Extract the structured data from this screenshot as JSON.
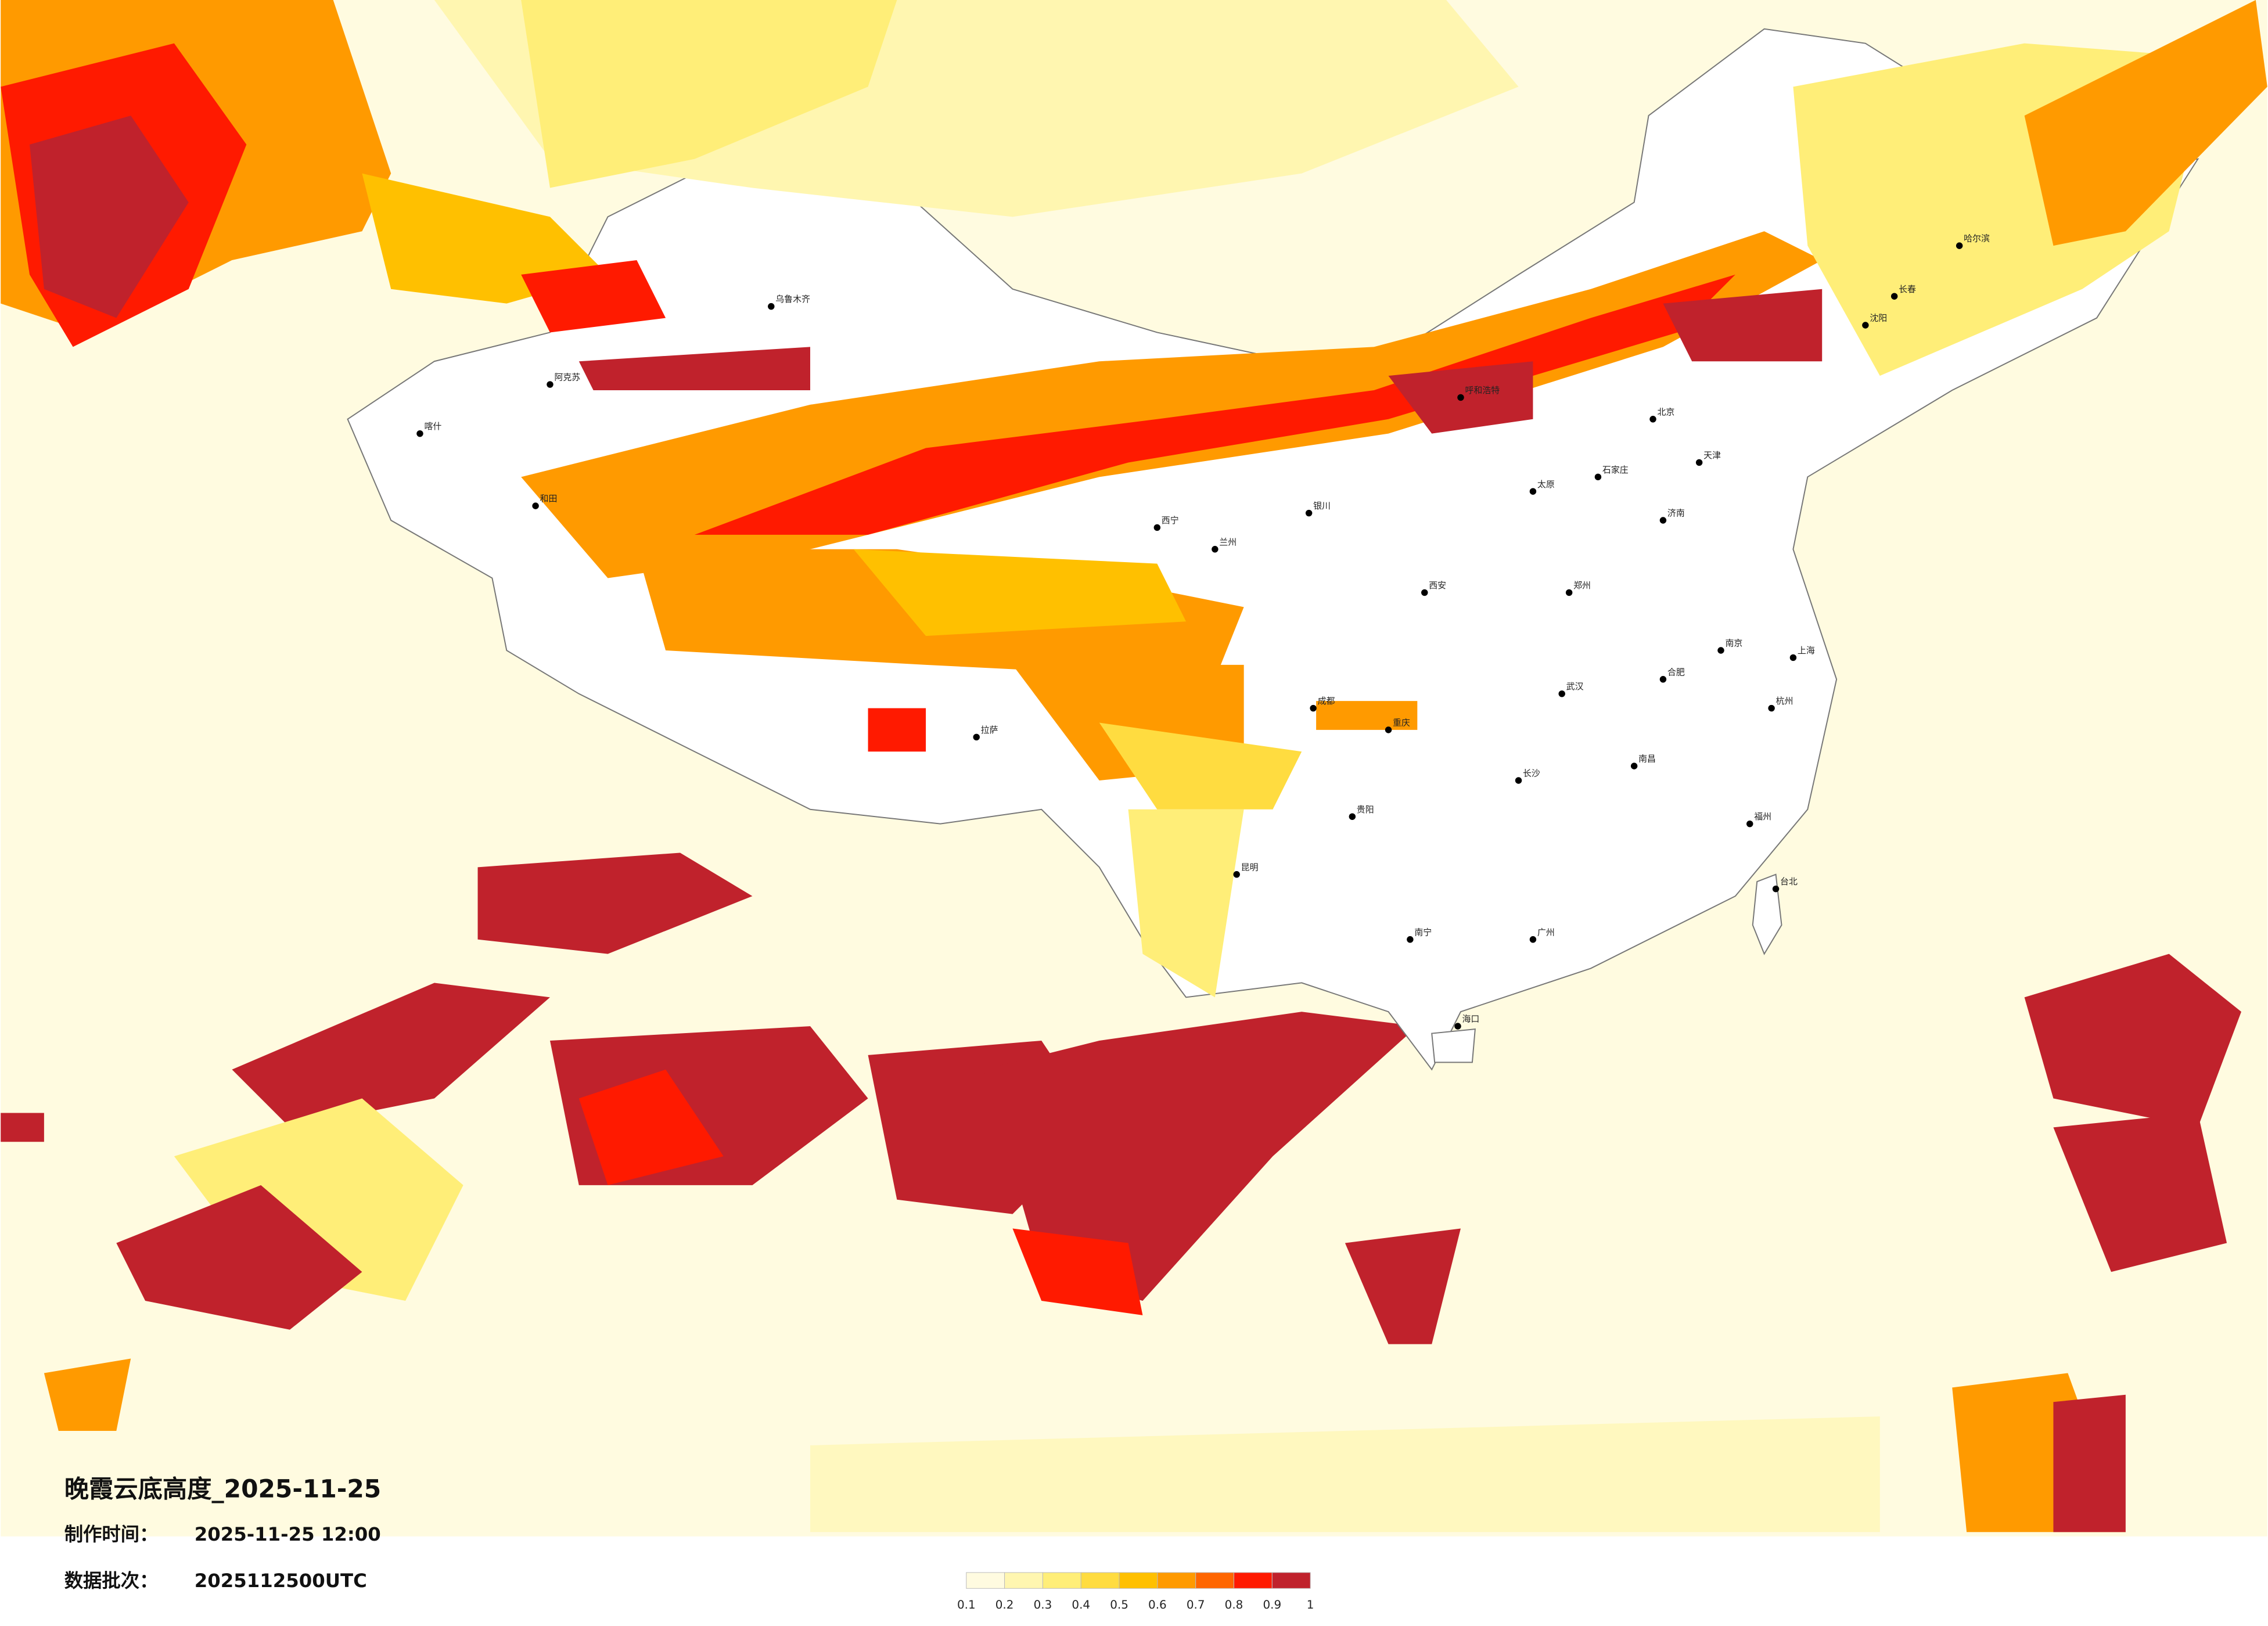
{
  "header": {
    "title": "晚霞云底高度_2025-11-25",
    "made_time_label": "制作时间：",
    "made_time": "2025-11-25 12:00",
    "batch_label": "数据批次：",
    "batch": "2025112500UTC"
  },
  "legend": {
    "colors": [
      "#fffbe0",
      "#fff6b0",
      "#ffee78",
      "#ffdc40",
      "#ffc000",
      "#ff9a00",
      "#ff6600",
      "#ff1a00",
      "#c0222c"
    ],
    "ticks": [
      0.1,
      0.2,
      0.3,
      0.4,
      0.5,
      0.6,
      0.7,
      0.8,
      0.9,
      1
    ]
  },
  "cities": [
    "乌鲁木齐",
    "阿克苏",
    "喀什",
    "和田",
    "拉萨",
    "西宁",
    "兰州",
    "银川",
    "呼和浩特",
    "北京",
    "天津",
    "石家庄",
    "太原",
    "郑州",
    "济南",
    "西安",
    "成都",
    "重庆",
    "贵阳",
    "昆明",
    "南宁",
    "广州",
    "长沙",
    "武汉",
    "南昌",
    "合肥",
    "南京",
    "上海",
    "杭州",
    "福州",
    "台北",
    "海口",
    "沈阳",
    "长春",
    "哈尔滨"
  ]
}
